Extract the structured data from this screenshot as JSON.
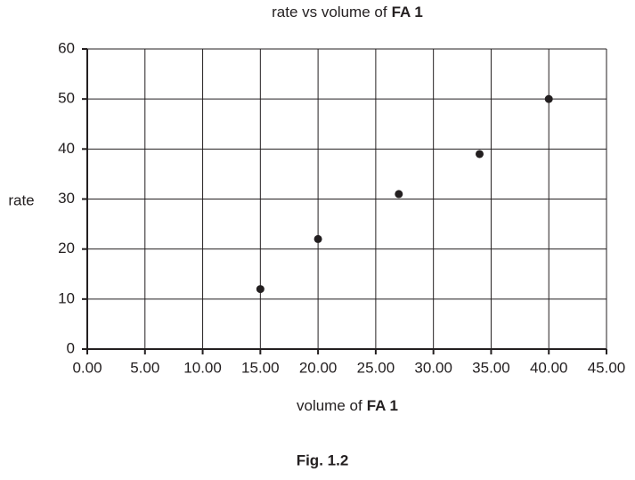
{
  "chart_data": {
    "type": "scatter",
    "title": {
      "text": "rate vs volume of",
      "bold": "FA 1"
    },
    "x_label": {
      "text": "volume of",
      "bold": "FA 1"
    },
    "y_label": "rate",
    "caption": "Fig. 1.2",
    "x": [
      15,
      20,
      27,
      34,
      40
    ],
    "values": [
      12,
      22,
      31,
      39,
      50
    ],
    "color": "#231f20",
    "xlim": [
      0,
      45
    ],
    "ylim": [
      0,
      60
    ],
    "xticks": [
      {
        "value": 0,
        "label": "0.00"
      },
      {
        "value": 5,
        "label": "5.00"
      },
      {
        "value": 10,
        "label": "10.00"
      },
      {
        "value": 15,
        "label": "15.00"
      },
      {
        "value": 20,
        "label": "20.00"
      },
      {
        "value": 25,
        "label": "25.00"
      },
      {
        "value": 30,
        "label": "30.00"
      },
      {
        "value": 35,
        "label": "35.00"
      },
      {
        "value": 40,
        "label": "40.00"
      },
      {
        "value": 45,
        "label": "45.00"
      }
    ],
    "yticks": [
      0,
      10,
      20,
      30,
      40,
      50,
      60
    ],
    "grid": true
  }
}
